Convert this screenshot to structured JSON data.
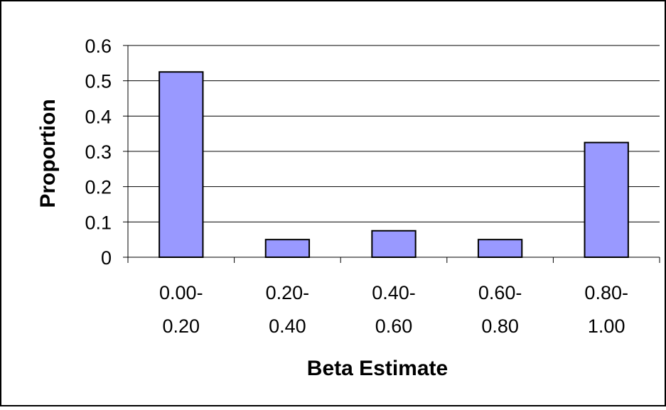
{
  "chart_data": {
    "type": "bar",
    "title": "",
    "xlabel": "Beta Estimate",
    "ylabel": "Proportion",
    "categories": [
      [
        "0.00-",
        "0.20"
      ],
      [
        "0.20-",
        "0.40"
      ],
      [
        "0.40-",
        "0.60"
      ],
      [
        "0.60-",
        "0.80"
      ],
      [
        "0.80-",
        "1.00"
      ]
    ],
    "values": [
      0.525,
      0.05,
      0.075,
      0.05,
      0.325
    ],
    "ylim": [
      0,
      0.6
    ],
    "yticks": [
      "0",
      "0.1",
      "0.2",
      "0.3",
      "0.4",
      "0.5",
      "0.6"
    ],
    "grid": true,
    "legend": "none",
    "colors": {
      "bar_fill": "#9999ff",
      "bar_stroke": "#000000",
      "grid": "#000000",
      "background": "#ffffff"
    }
  }
}
